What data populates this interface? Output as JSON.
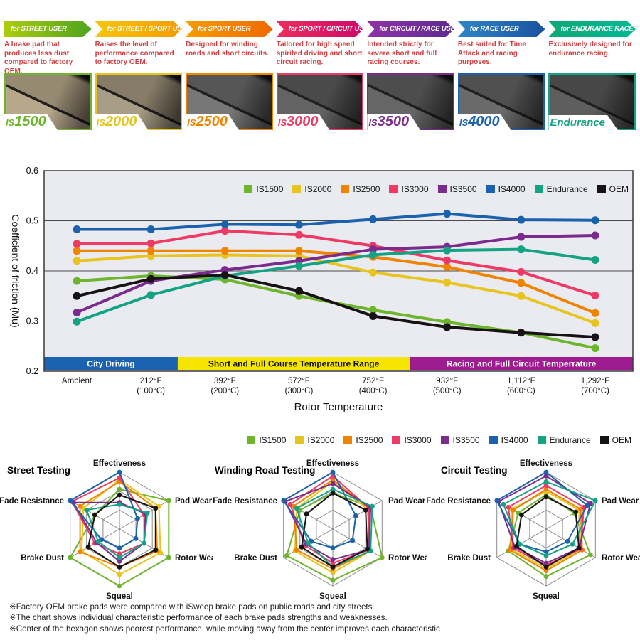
{
  "header": {
    "columns": [
      {
        "id": "IS1500",
        "banner": "for STREET USER",
        "description": "A brake pad that produces less dust compared to factory OEM.",
        "color": "#6cb52c",
        "gradient": [
          "#accc0c",
          "#4ea31f"
        ],
        "pad": [
          "#b7a88c",
          "#968a72"
        ]
      },
      {
        "id": "IS2000",
        "banner": "for STREET / SPORT USER",
        "description": "Raises the level of performance compared to factory OEM.",
        "color": "#e8c41e",
        "gradient": [
          "#f6c50a",
          "#f59c00"
        ],
        "pad": [
          "#a89d86",
          "#867c68"
        ]
      },
      {
        "id": "IS2500",
        "banner": "for SPORT USER",
        "description": "Designed for winding roads and short circuits.",
        "color": "#f08300",
        "gradient": [
          "#f79d00",
          "#f06800"
        ],
        "pad": [
          "#777777",
          "#565656"
        ]
      },
      {
        "id": "IS3000",
        "banner": "for SPORT / CIRCUIT USER",
        "description": "Tailored for high speed spirited driving and short circuit racing.",
        "color": "#ee3a64",
        "gradient": [
          "#ec2f5e",
          "#cf0769"
        ],
        "pad": [
          "#636363",
          "#4a4a4a"
        ]
      },
      {
        "id": "IS3500",
        "banner": "for CIRCUIT / RACE USER",
        "description": "Intended strictly for severe short and full racing courses.",
        "color": "#7b2b8e",
        "gradient": [
          "#9032a6",
          "#5c2b8f"
        ],
        "pad": [
          "#666666",
          "#4d4d4d"
        ]
      },
      {
        "id": "IS4000",
        "banner": "for RACE USER",
        "description": "Best suited for Time Attack and racing purposes.",
        "color": "#1b62ae",
        "gradient": [
          "#2e85c8",
          "#1b52a0"
        ],
        "pad": [
          "#6a6a6a",
          "#505050"
        ]
      },
      {
        "id": "Endurance",
        "banner": "for ENDURANCE RACE USER",
        "description": "Exclusively designed for endurance racing.",
        "color": "#14a285",
        "gradient": [
          "#0fa877",
          "#00b893"
        ],
        "pad": [
          "#5e5e5e",
          "#474747"
        ]
      }
    ]
  },
  "chart_data": [
    {
      "id": "friction",
      "type": "line",
      "ylabel": "Coefficient of friction (Mu)",
      "xlabel": "Rotor Temperature",
      "ylim": [
        0.2,
        0.6
      ],
      "yticks": [
        0.2,
        0.3,
        0.4,
        0.5,
        0.6
      ],
      "grid": "horizontal",
      "legend_position": "top-right-inside",
      "categories": [
        [
          "Ambient",
          ""
        ],
        [
          "212°F",
          "(100°C)"
        ],
        [
          "392°F",
          "(200°C)"
        ],
        [
          "572°F",
          "(300°C)"
        ],
        [
          "752°F",
          "(400°C)"
        ],
        [
          "932°F",
          "(500°C)"
        ],
        [
          "1,112°F",
          "(600°C)"
        ],
        [
          "1,292°F",
          "(700°C)"
        ]
      ],
      "bands": [
        {
          "label": "City Driving",
          "from": 0,
          "to": 0.227,
          "color": "#1b63b0",
          "text": "#ffffff"
        },
        {
          "label": "Short and Full Course Temperature Range",
          "from": 0.227,
          "to": 0.621,
          "color": "#f6e500",
          "text": "#111111"
        },
        {
          "label": "Racing and Full Circuit Temperrature",
          "from": 0.621,
          "to": 1,
          "color": "#9e1c8f",
          "text": "#ffffff"
        }
      ],
      "series": [
        {
          "name": "IS1500",
          "color": "#6cb52c",
          "values": [
            0.38,
            0.39,
            0.383,
            0.35,
            0.322,
            0.298,
            0.277,
            0.246
          ]
        },
        {
          "name": "IS2000",
          "color": "#e8c41e",
          "values": [
            0.42,
            0.43,
            0.432,
            0.43,
            0.397,
            0.377,
            0.35,
            0.296
          ]
        },
        {
          "name": "IS2500",
          "color": "#f08300",
          "values": [
            0.44,
            0.44,
            0.44,
            0.44,
            0.428,
            0.408,
            0.376,
            0.316
          ]
        },
        {
          "name": "IS3000",
          "color": "#ee3a64",
          "values": [
            0.454,
            0.455,
            0.48,
            0.472,
            0.45,
            0.421,
            0.398,
            0.351
          ]
        },
        {
          "name": "IS3500",
          "color": "#7b2b8e",
          "values": [
            0.317,
            0.38,
            0.402,
            0.42,
            0.443,
            0.448,
            0.468,
            0.471
          ]
        },
        {
          "name": "IS4000",
          "color": "#1b62ae",
          "values": [
            0.483,
            0.483,
            0.493,
            0.492,
            0.503,
            0.514,
            0.502,
            0.501
          ]
        },
        {
          "name": "Endurance",
          "color": "#14a285",
          "values": [
            0.299,
            0.352,
            0.39,
            0.41,
            0.432,
            0.441,
            0.443,
            0.422
          ]
        },
        {
          "name": "OEM",
          "color": "#191215",
          "values": [
            0.35,
            0.384,
            0.392,
            0.36,
            0.31,
            0.288,
            0.277,
            0.268
          ]
        }
      ]
    },
    {
      "id": "street",
      "type": "radar",
      "title": "Street Testing",
      "max": 3,
      "rings": 3,
      "axes": [
        "Effectiveness",
        "Pad Wear",
        "Rotor Wear",
        "Squeal",
        "Brake Dust",
        "Fade Resistance"
      ],
      "series": [
        {
          "name": "IS1500",
          "color": "#6cb52c",
          "values": [
            2.1,
            3,
            3,
            3,
            3,
            1.5
          ]
        },
        {
          "name": "IS2000",
          "color": "#e8c41e",
          "values": [
            2.6,
            2.4,
            2.5,
            2.4,
            2.3,
            2.2
          ]
        },
        {
          "name": "IS2500",
          "color": "#f08300",
          "values": [
            2.5,
            2.2,
            2.3,
            2.0,
            2.4,
            2.4
          ]
        },
        {
          "name": "IS3000",
          "color": "#ee3a64",
          "values": [
            2.7,
            1.5,
            1.5,
            1.3,
            1.5,
            2.9
          ]
        },
        {
          "name": "IS3500",
          "color": "#7b2b8e",
          "values": [
            1.4,
            1.6,
            1.5,
            1.7,
            1.4,
            2.8
          ]
        },
        {
          "name": "IS4000",
          "color": "#1b62ae",
          "values": [
            3,
            1.1,
            1.0,
            1.0,
            1.1,
            3
          ]
        },
        {
          "name": "Endurance",
          "color": "#14a285",
          "values": [
            1.3,
            1.7,
            1.5,
            1.5,
            1.3,
            2.0
          ]
        },
        {
          "name": "OEM",
          "color": "#191215",
          "values": [
            1.8,
            2.2,
            2.2,
            2.0,
            1.9,
            1.5
          ]
        }
      ]
    },
    {
      "id": "winding",
      "type": "radar",
      "title": "Winding Road Testing",
      "max": 3,
      "rings": 3,
      "axes": [
        "Effectiveness",
        "Pad Wear",
        "Rotor Wear",
        "Squeal",
        "Brake Dust",
        "Fade Resistance"
      ],
      "series": [
        {
          "name": "IS1500",
          "color": "#6cb52c",
          "values": [
            1.9,
            2.3,
            3,
            2.7,
            2.8,
            2.0
          ]
        },
        {
          "name": "IS2000",
          "color": "#e8c41e",
          "values": [
            2.5,
            2.1,
            2.3,
            2.3,
            2.3,
            2.2
          ]
        },
        {
          "name": "IS2500",
          "color": "#f08300",
          "values": [
            2.6,
            2.2,
            2.3,
            2.1,
            2.2,
            2.4
          ]
        },
        {
          "name": "IS3000",
          "color": "#ee3a64",
          "values": [
            2.8,
            2.2,
            2.2,
            1.8,
            1.7,
            2.6
          ]
        },
        {
          "name": "IS3500",
          "color": "#7b2b8e",
          "values": [
            2.4,
            2.3,
            2.2,
            1.6,
            1.6,
            2.9
          ]
        },
        {
          "name": "IS4000",
          "color": "#1b62ae",
          "values": [
            3,
            1.4,
            1.2,
            1.0,
            1.3,
            3
          ]
        },
        {
          "name": "Endurance",
          "color": "#14a285",
          "values": [
            2.1,
            2.4,
            2.3,
            2.0,
            1.5,
            2.2
          ]
        },
        {
          "name": "OEM",
          "color": "#191215",
          "values": [
            1.9,
            2.0,
            2.1,
            2.0,
            1.9,
            1.6
          ]
        }
      ]
    },
    {
      "id": "circuit",
      "type": "radar",
      "title": "Circuit Testing",
      "max": 3,
      "rings": 3,
      "axes": [
        "Effectiveness",
        "Pad Wear",
        "Rotor Wear",
        "Squeal",
        "Brake Dust",
        "Fade Resistance"
      ],
      "series": [
        {
          "name": "IS1500",
          "color": "#6cb52c",
          "values": [
            1.8,
            1.7,
            2.7,
            2.5,
            2.3,
            1.7
          ]
        },
        {
          "name": "IS2000",
          "color": "#e8c41e",
          "values": [
            2.0,
            2.0,
            2.1,
            2.1,
            2.1,
            2.1
          ]
        },
        {
          "name": "IS2500",
          "color": "#f08300",
          "values": [
            2.1,
            2.1,
            2.2,
            2.2,
            2.2,
            2.0
          ]
        },
        {
          "name": "IS3000",
          "color": "#ee3a64",
          "values": [
            2.3,
            2.3,
            2.1,
            1.9,
            2.0,
            2.3
          ]
        },
        {
          "name": "IS3500",
          "color": "#7b2b8e",
          "values": [
            2.8,
            2.7,
            2.0,
            1.8,
            1.9,
            2.9
          ]
        },
        {
          "name": "IS4000",
          "color": "#1b62ae",
          "values": [
            3,
            2.5,
            1.3,
            1.2,
            1.6,
            3
          ]
        },
        {
          "name": "Endurance",
          "color": "#14a285",
          "values": [
            2.5,
            3,
            1.6,
            1.4,
            1.6,
            2.6
          ]
        },
        {
          "name": "OEM",
          "color": "#191215",
          "values": [
            1.7,
            1.8,
            2.0,
            2.0,
            1.8,
            1.5
          ]
        }
      ]
    }
  ],
  "notes": [
    "※Factory OEM brake pads were compared with iSweep brake pads on public roads and city streets.",
    "※The chart shows individual characteristic performance of each brake pads strengths and weaknesses.",
    "※Center of the hexagon shows poorest performance, while moving away from the center improves each characteristic"
  ]
}
